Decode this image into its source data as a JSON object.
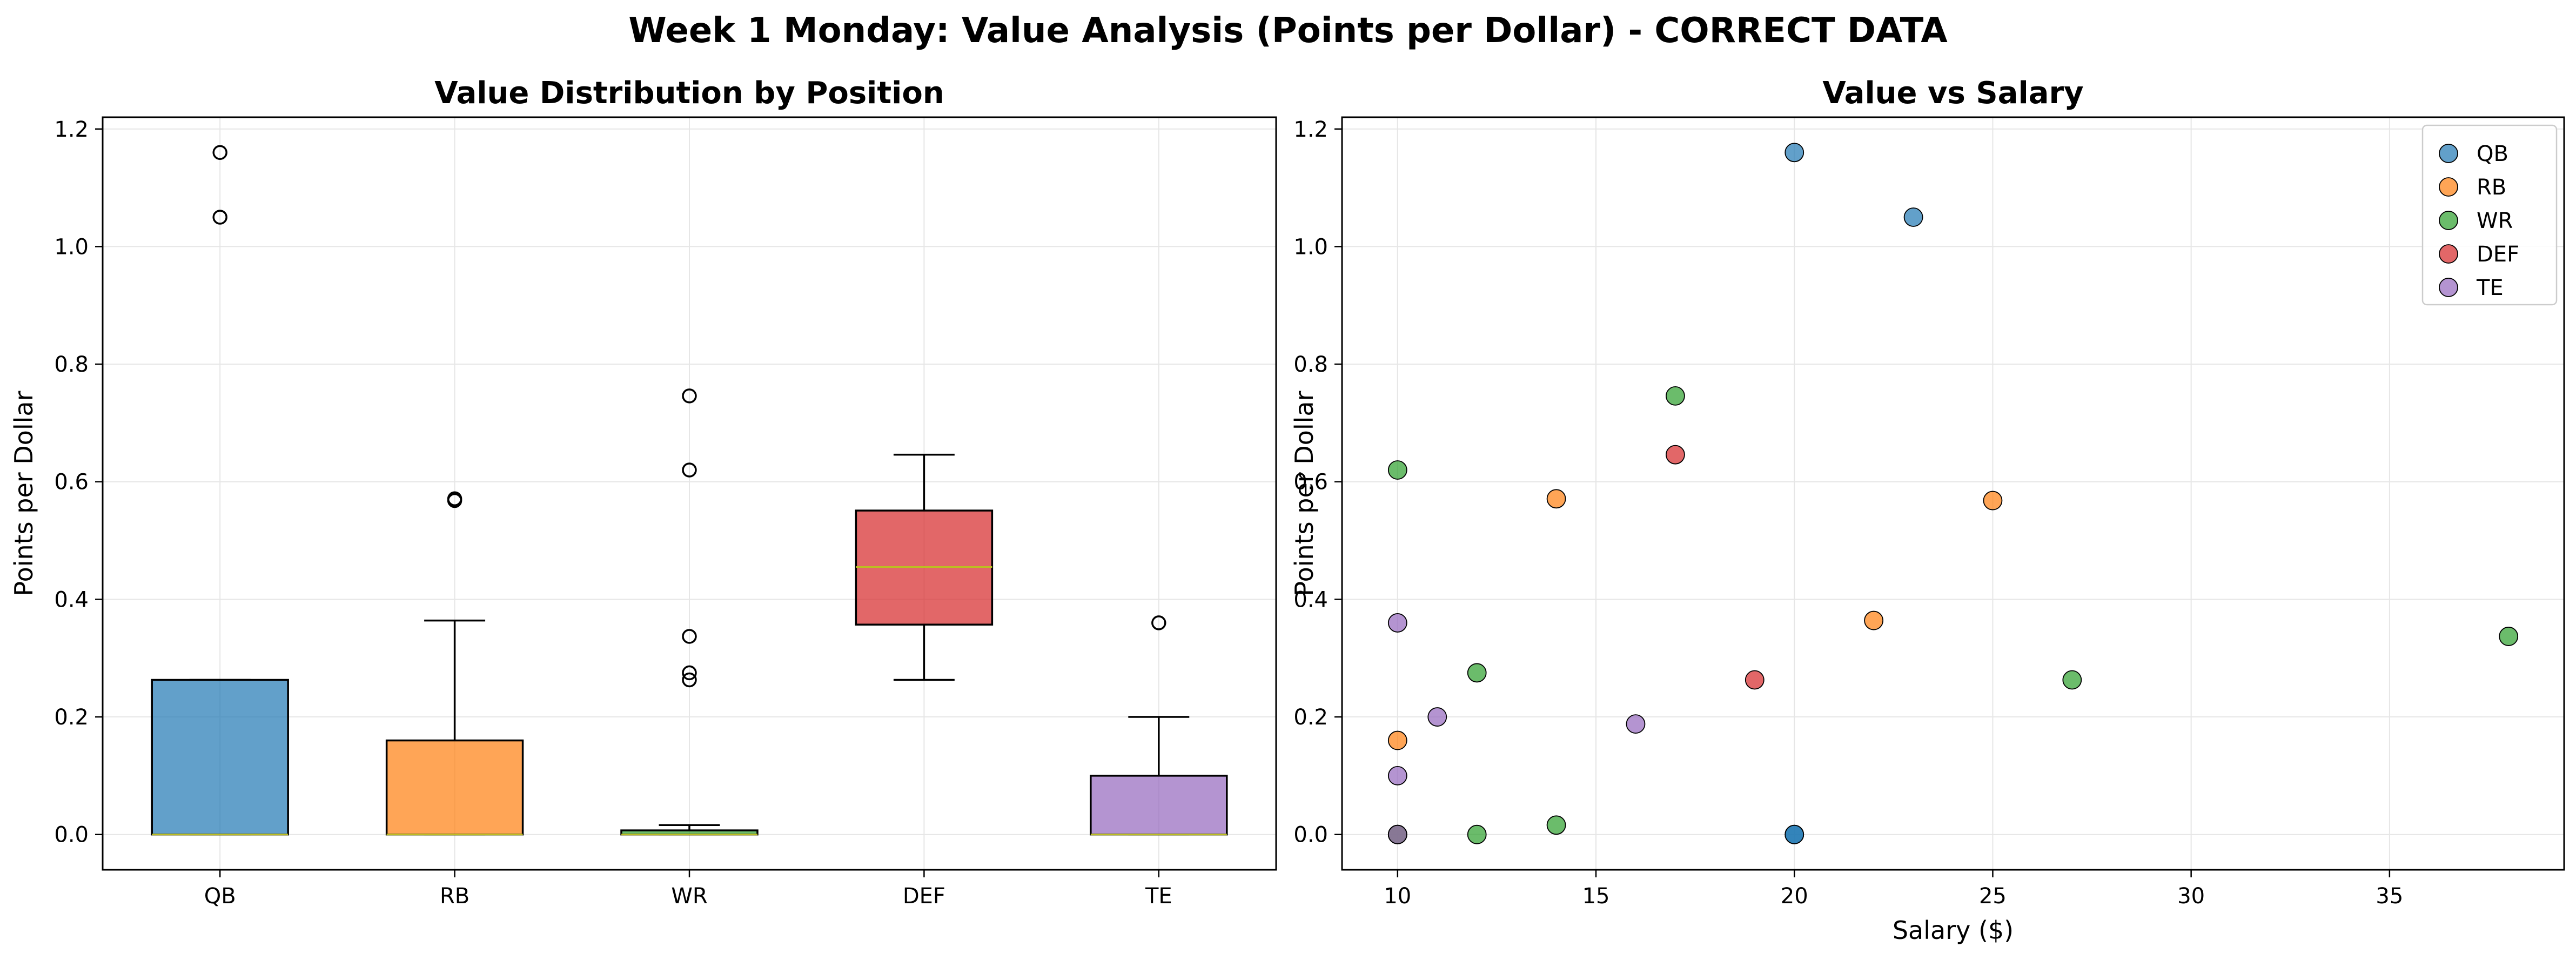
{
  "suptitle": "Week 1 Monday: Value Analysis (Points per Dollar) - CORRECT DATA",
  "colors": {
    "QB": "#1f77b4",
    "RB": "#ff7f0e",
    "WR": "#2ca02c",
    "DEF": "#d62728",
    "TE": "#9467bd",
    "median_line": "#bcbd22",
    "grid": "#e6e6e6"
  },
  "chart_data": [
    {
      "type": "box",
      "title": "Value Distribution by Position",
      "xlabel": "",
      "ylabel": "Points per Dollar",
      "ylim": [
        -0.06,
        1.22
      ],
      "yticks": [
        0.0,
        0.2,
        0.4,
        0.6,
        0.8,
        1.0,
        1.2
      ],
      "ytick_labels": [
        "0.0",
        "0.2",
        "0.4",
        "0.6",
        "0.8",
        "1.0",
        "1.2"
      ],
      "grid": true,
      "categories": [
        "QB",
        "RB",
        "WR",
        "DEF",
        "TE"
      ],
      "boxes": [
        {
          "name": "QB",
          "whisker_low": 0.0,
          "q1": 0.0,
          "median": 0.0,
          "q3": 0.263,
          "whisker_high": 0.263,
          "outliers": [
            1.05,
            1.16
          ]
        },
        {
          "name": "RB",
          "whisker_low": 0.0,
          "q1": 0.0,
          "median": 0.0,
          "q3": 0.16,
          "whisker_high": 0.364,
          "outliers": [
            0.568,
            0.571
          ]
        },
        {
          "name": "WR",
          "whisker_low": 0.0,
          "q1": 0.0,
          "median": 0.0,
          "q3": 0.007,
          "whisker_high": 0.016,
          "outliers": [
            0.263,
            0.275,
            0.337,
            0.62,
            0.746
          ]
        },
        {
          "name": "DEF",
          "whisker_low": 0.263,
          "q1": 0.357,
          "median": 0.455,
          "q3": 0.551,
          "whisker_high": 0.646,
          "outliers": []
        },
        {
          "name": "TE",
          "whisker_low": 0.0,
          "q1": 0.0,
          "median": 0.0,
          "q3": 0.1,
          "whisker_high": 0.2,
          "outliers": [
            0.36
          ]
        }
      ]
    },
    {
      "type": "scatter",
      "title": "Value vs Salary",
      "xlabel": "Salary ($)",
      "ylabel": "Points per Dollar",
      "xlim": [
        8.6,
        39.4
      ],
      "ylim": [
        -0.06,
        1.22
      ],
      "xticks": [
        10,
        15,
        20,
        25,
        30,
        35
      ],
      "xtick_labels": [
        "10",
        "15",
        "20",
        "25",
        "30",
        "35"
      ],
      "yticks": [
        0.0,
        0.2,
        0.4,
        0.6,
        0.8,
        1.0,
        1.2
      ],
      "ytick_labels": [
        "0.0",
        "0.2",
        "0.4",
        "0.6",
        "0.8",
        "1.0",
        "1.2"
      ],
      "grid": true,
      "legend_position": "top-right",
      "series": [
        {
          "name": "QB",
          "points": [
            [
              20,
              1.16
            ],
            [
              23,
              1.05
            ],
            [
              20,
              0.0
            ],
            [
              20,
              0.0
            ]
          ]
        },
        {
          "name": "RB",
          "points": [
            [
              14,
              0.571
            ],
            [
              25,
              0.568
            ],
            [
              22,
              0.364
            ],
            [
              10,
              0.16
            ],
            [
              10,
              0.0
            ]
          ]
        },
        {
          "name": "WR",
          "points": [
            [
              10,
              0.62
            ],
            [
              17,
              0.746
            ],
            [
              12,
              0.275
            ],
            [
              38,
              0.337
            ],
            [
              27,
              0.263
            ],
            [
              14,
              0.016
            ],
            [
              12,
              0.0
            ],
            [
              10,
              0.0
            ]
          ]
        },
        {
          "name": "DEF",
          "points": [
            [
              17,
              0.646
            ],
            [
              19,
              0.263
            ]
          ]
        },
        {
          "name": "TE",
          "points": [
            [
              10,
              0.36
            ],
            [
              11,
              0.2
            ],
            [
              16,
              0.188
            ],
            [
              10,
              0.1
            ],
            [
              10,
              0.0
            ]
          ]
        }
      ]
    }
  ]
}
